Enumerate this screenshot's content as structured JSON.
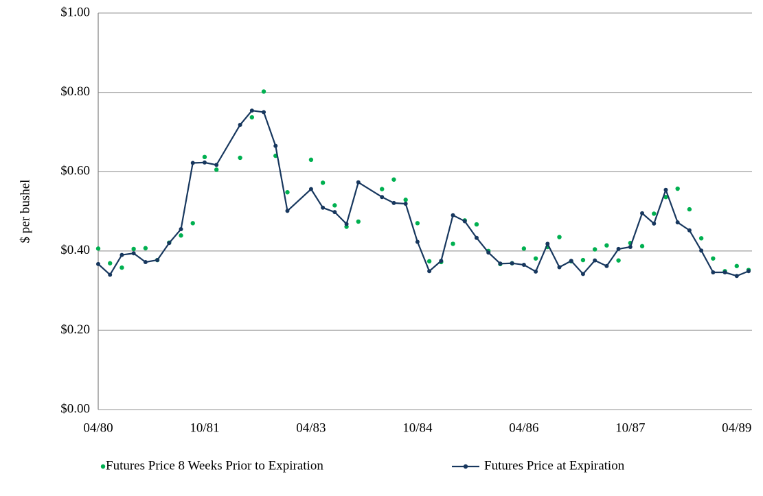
{
  "chart_data": {
    "type": "line",
    "y_label": "$ per bushel",
    "categories": [
      "04/80",
      null,
      null,
      null,
      null,
      null,
      null,
      null,
      null,
      "10/81",
      null,
      null,
      null,
      null,
      null,
      null,
      null,
      null,
      "04/83",
      null,
      null,
      null,
      null,
      null,
      null,
      null,
      null,
      "10/84",
      null,
      null,
      null,
      null,
      null,
      null,
      null,
      null,
      "04/86",
      null,
      null,
      null,
      null,
      null,
      null,
      null,
      null,
      "10/87",
      null,
      null,
      null,
      null,
      null,
      null,
      null,
      null,
      "04/89",
      null
    ],
    "series": [
      {
        "name": "Futures Price 8 Weeks Prior to Expiration",
        "color": "#00b050",
        "style": "markers",
        "values": [
          0.406,
          0.369,
          0.358,
          0.405,
          0.407,
          0.377,
          0.421,
          0.439,
          0.47,
          0.637,
          0.605,
          null,
          0.635,
          0.737,
          0.802,
          0.64,
          0.548,
          null,
          0.63,
          0.572,
          0.515,
          0.461,
          0.474,
          null,
          0.556,
          0.58,
          0.529,
          0.47,
          0.374,
          0.372,
          0.418,
          0.477,
          0.467,
          0.4,
          0.367,
          0.369,
          0.406,
          0.381,
          0.41,
          0.435,
          0.374,
          0.377,
          0.404,
          0.414,
          0.376,
          0.42,
          0.412,
          0.494,
          0.536,
          0.557,
          0.505,
          0.432,
          0.381,
          0.349,
          0.362,
          0.352
        ]
      },
      {
        "name": "Futures Price at Expiration",
        "color": "#17375e",
        "style": "line-markers",
        "values": [
          0.367,
          0.34,
          0.39,
          0.394,
          0.372,
          0.377,
          0.42,
          0.455,
          0.622,
          0.623,
          0.617,
          null,
          0.718,
          0.754,
          0.75,
          0.665,
          0.501,
          null,
          0.556,
          0.509,
          0.498,
          0.468,
          0.573,
          null,
          0.536,
          0.521,
          0.519,
          0.423,
          0.349,
          0.375,
          0.49,
          0.475,
          0.433,
          0.396,
          0.368,
          0.369,
          0.365,
          0.348,
          0.418,
          0.359,
          0.375,
          0.342,
          0.376,
          0.362,
          0.405,
          0.41,
          0.495,
          0.469,
          0.554,
          0.472,
          0.452,
          0.401,
          0.346,
          0.346,
          0.337,
          0.349
        ]
      }
    ],
    "ylim": [
      0,
      1
    ],
    "yticks": [
      {
        "value": 0,
        "label": "$0.00"
      },
      {
        "value": 0.2,
        "label": "$0.20"
      },
      {
        "value": 0.4,
        "label": "$0.40"
      },
      {
        "value": 0.6,
        "label": "$0.60"
      },
      {
        "value": 0.8,
        "label": "$0.80"
      },
      {
        "value": 1,
        "label": "$1.00"
      }
    ],
    "grid": true,
    "legend": "bottom"
  }
}
